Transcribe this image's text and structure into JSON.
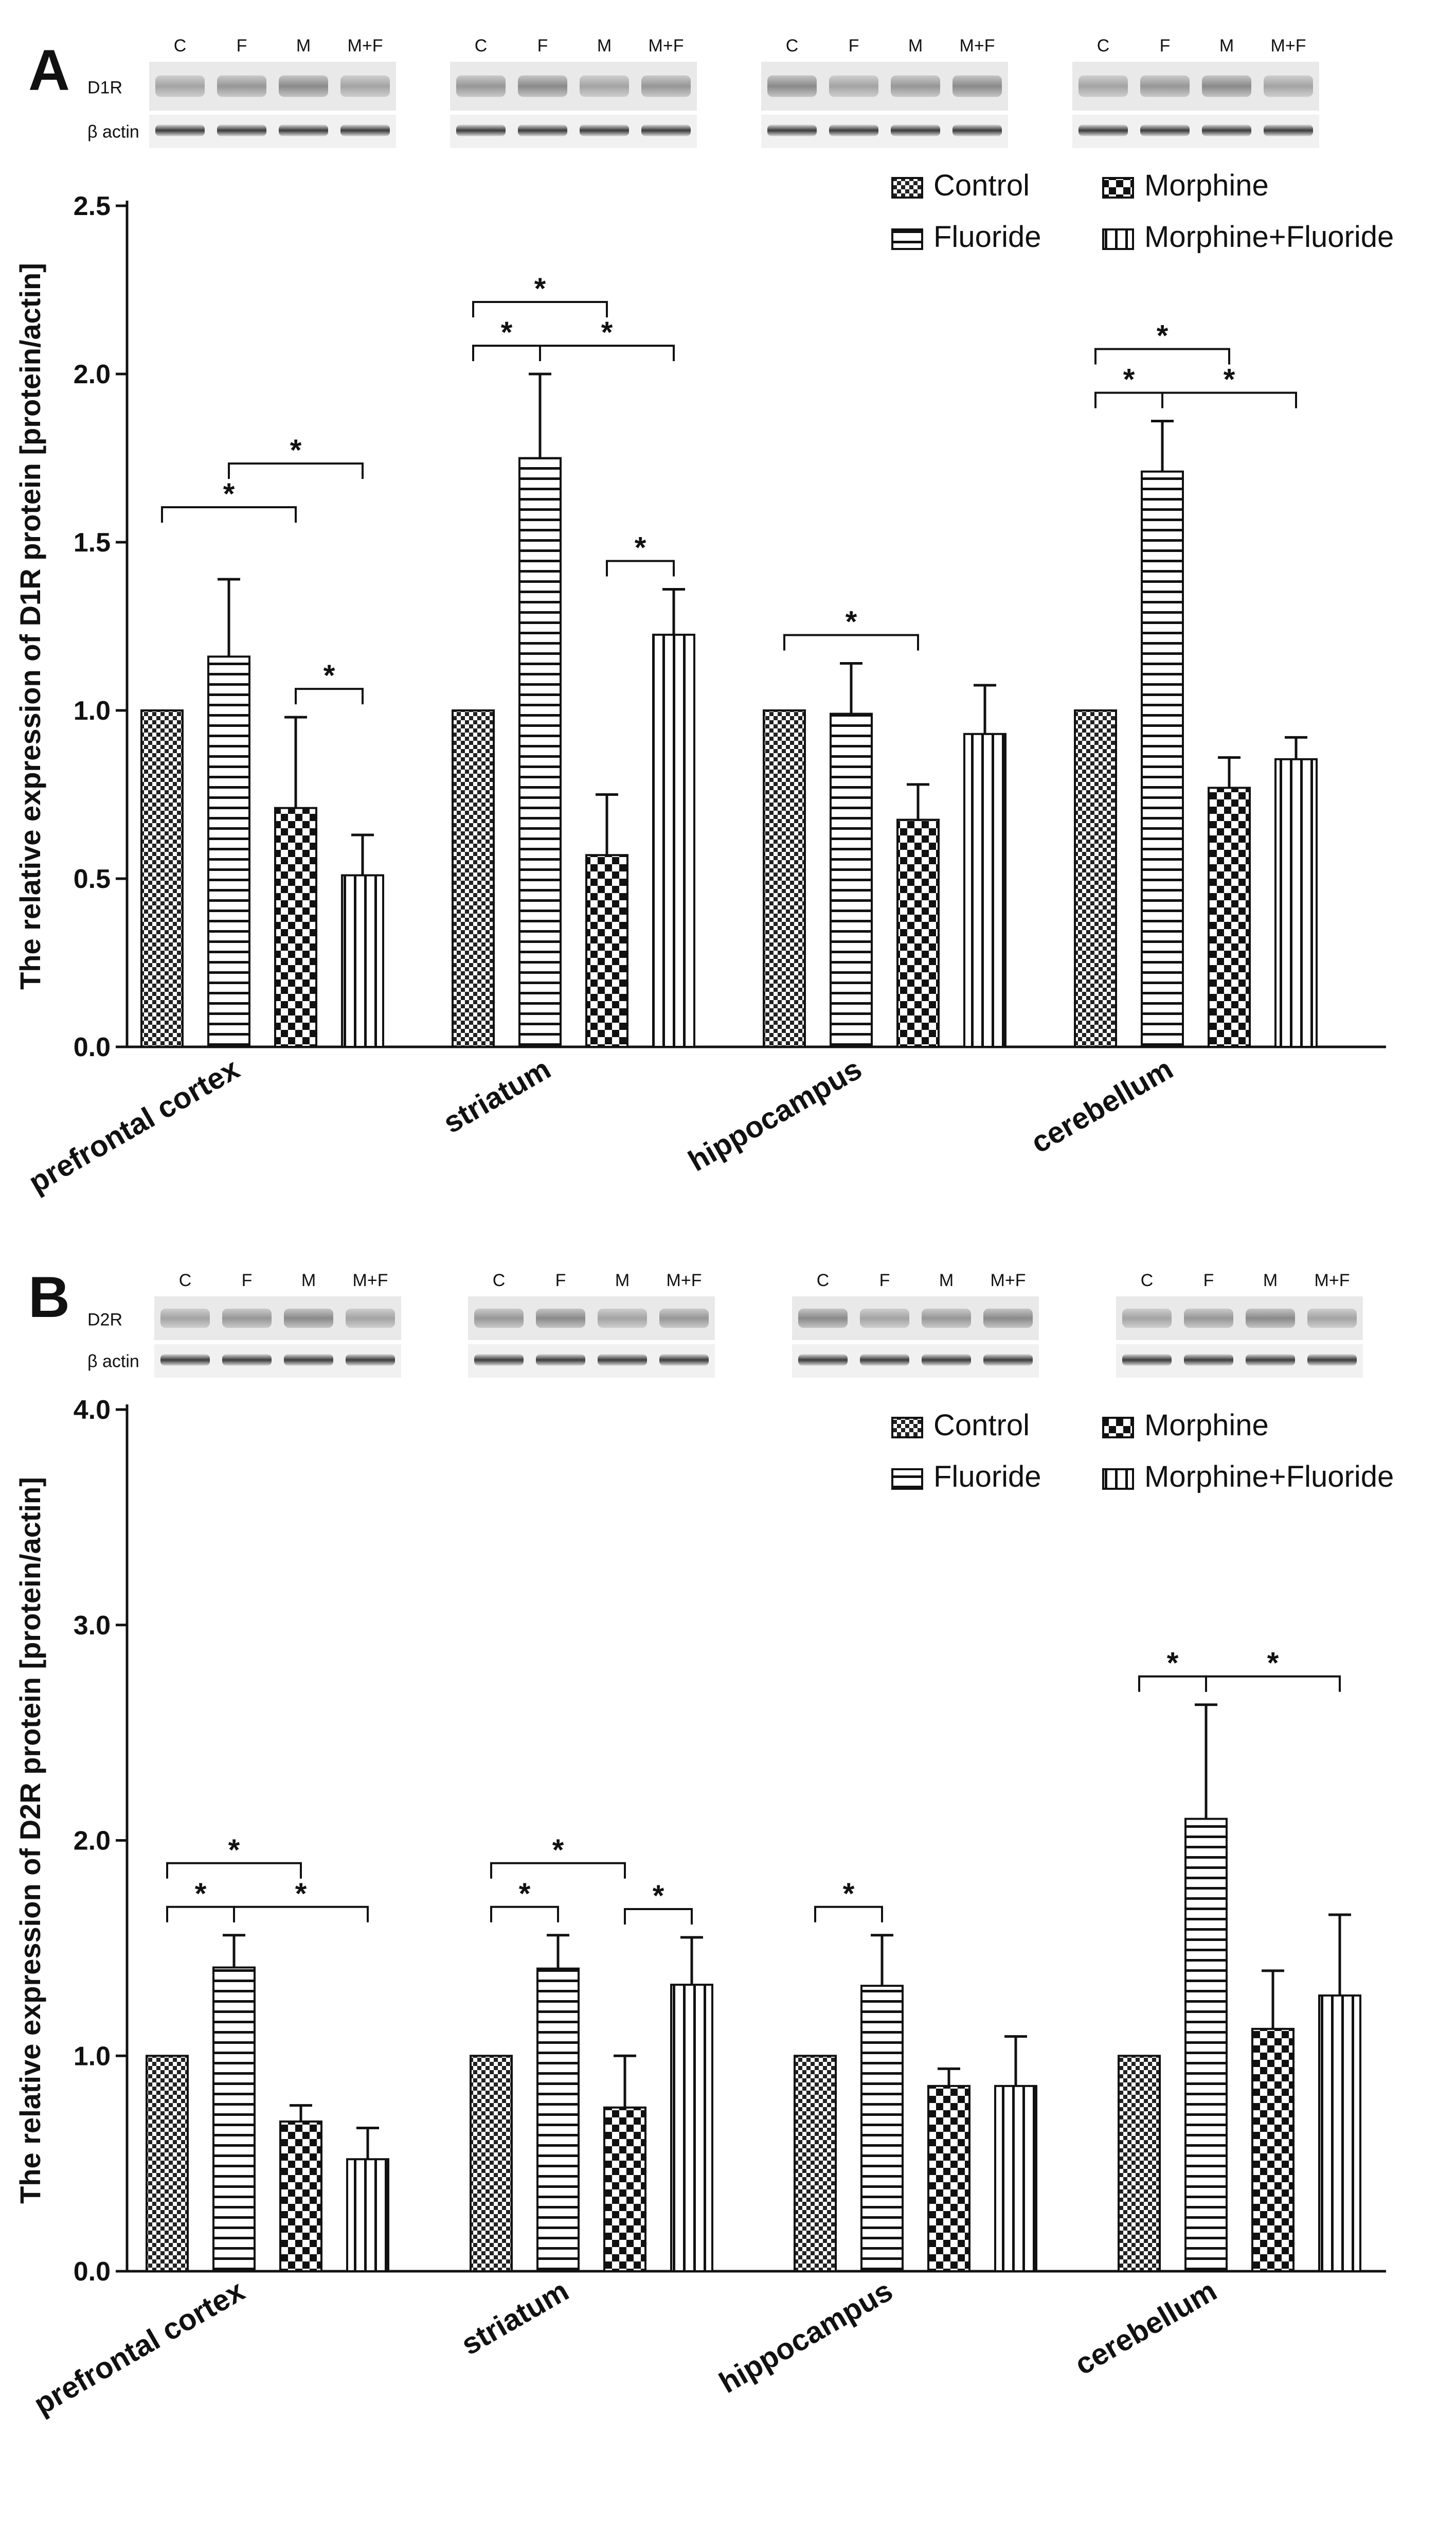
{
  "chart_data": [
    {
      "panel_label": "A",
      "type": "bar",
      "categories": [
        "prefrontal cortex",
        "striatum",
        "hippocampus",
        "cerebellum"
      ],
      "series": [
        {
          "name": "Control",
          "pattern": "checker-fine",
          "values": [
            1.0,
            1.0,
            1.0,
            1.0
          ],
          "errors": [
            0,
            0,
            0,
            0
          ]
        },
        {
          "name": "Fluoride",
          "pattern": "horizontal",
          "values": [
            1.16,
            1.75,
            0.99,
            1.71
          ],
          "errors": [
            0.23,
            0.25,
            0.15,
            0.15
          ]
        },
        {
          "name": "Morphine",
          "pattern": "checker-coarse",
          "values": [
            0.71,
            0.57,
            0.675,
            0.77
          ],
          "errors": [
            0.27,
            0.18,
            0.105,
            0.09
          ]
        },
        {
          "name": "Morphine+Fluoride",
          "pattern": "vertical",
          "values": [
            0.51,
            1.225,
            0.93,
            0.855
          ],
          "errors": [
            0.12,
            0.135,
            0.145,
            0.065
          ]
        }
      ],
      "ylabel": "The relative expression of  D1R protein [protein/actin]",
      "xlabel": "",
      "ylim": [
        0,
        2.5
      ],
      "yticks": [
        "0.0",
        "0.5",
        "1.0",
        "1.5",
        "2.0",
        "2.5"
      ],
      "legend_position": "top-right",
      "significance": [
        {
          "category": 0,
          "from": 0,
          "to": 2,
          "level": 1,
          "label": "*"
        },
        {
          "category": 0,
          "from": 1,
          "to": 3,
          "level": 2,
          "label": "*"
        },
        {
          "category": 0,
          "from": 2,
          "to": 3,
          "level": 0,
          "label": "*"
        },
        {
          "category": 1,
          "from": 0,
          "to": 1,
          "level": 0,
          "label": "*"
        },
        {
          "category": 1,
          "from": 0,
          "to": 2,
          "level": 1,
          "label": "*"
        },
        {
          "category": 1,
          "from": 1,
          "to": 3,
          "level": 0,
          "label": "*"
        },
        {
          "category": 1,
          "from": 2,
          "to": 3,
          "level": 0,
          "label": "*"
        },
        {
          "category": 2,
          "from": 0,
          "to": 2,
          "level": 0,
          "label": "*"
        },
        {
          "category": 3,
          "from": 0,
          "to": 1,
          "level": 0,
          "label": "*"
        },
        {
          "category": 3,
          "from": 0,
          "to": 2,
          "level": 1,
          "label": "*"
        },
        {
          "category": 3,
          "from": 1,
          "to": 3,
          "level": 0,
          "label": "*"
        }
      ],
      "blot": {
        "lane_labels": [
          "C",
          "F",
          "M",
          "M+F"
        ],
        "row_labels": [
          "D1R",
          "β actin"
        ]
      }
    },
    {
      "panel_label": "B",
      "type": "bar",
      "categories": [
        "prefrontal cortex",
        "striatum",
        "hippocampus",
        "cerebellum"
      ],
      "series": [
        {
          "name": "Control",
          "pattern": "checker-fine",
          "values": [
            1.0,
            1.0,
            1.0,
            1.0
          ],
          "errors": [
            0,
            0,
            0,
            0
          ]
        },
        {
          "name": "Fluoride",
          "pattern": "horizontal",
          "values": [
            1.41,
            1.405,
            1.325,
            2.1
          ],
          "errors": [
            0.15,
            0.155,
            0.235,
            0.53
          ]
        },
        {
          "name": "Morphine",
          "pattern": "checker-coarse",
          "values": [
            0.695,
            0.76,
            0.86,
            1.125
          ],
          "errors": [
            0.075,
            0.24,
            0.08,
            0.27
          ]
        },
        {
          "name": "Morphine+Fluoride",
          "pattern": "vertical",
          "values": [
            0.52,
            1.33,
            0.86,
            1.28
          ],
          "errors": [
            0.145,
            0.22,
            0.23,
            0.375
          ]
        }
      ],
      "ylabel": "The relative expression of  D2R protein [protein/actin]",
      "xlabel": "",
      "ylim": [
        0,
        4.0
      ],
      "yticks": [
        "0.0",
        "1.0",
        "2.0",
        "3.0",
        "4.0"
      ],
      "legend_position": "top-right",
      "significance": [
        {
          "category": 0,
          "from": 0,
          "to": 1,
          "level": 0,
          "label": "*"
        },
        {
          "category": 0,
          "from": 0,
          "to": 2,
          "level": 1,
          "label": "*"
        },
        {
          "category": 0,
          "from": 1,
          "to": 3,
          "level": 0,
          "label": "*"
        },
        {
          "category": 1,
          "from": 0,
          "to": 1,
          "level": 0,
          "label": "*"
        },
        {
          "category": 1,
          "from": 0,
          "to": 2,
          "level": 1,
          "label": "*"
        },
        {
          "category": 1,
          "from": 2,
          "to": 3,
          "level": 0,
          "label": "*"
        },
        {
          "category": 2,
          "from": 0,
          "to": 1,
          "level": 0,
          "label": "*"
        },
        {
          "category": 3,
          "from": 0,
          "to": 1,
          "level": 0,
          "label": "*"
        },
        {
          "category": 3,
          "from": 1,
          "to": 3,
          "level": 0,
          "label": "*"
        }
      ],
      "blot": {
        "lane_labels": [
          "C",
          "F",
          "M",
          "M+F"
        ],
        "row_labels": [
          "D2R",
          "β actin"
        ]
      }
    }
  ]
}
